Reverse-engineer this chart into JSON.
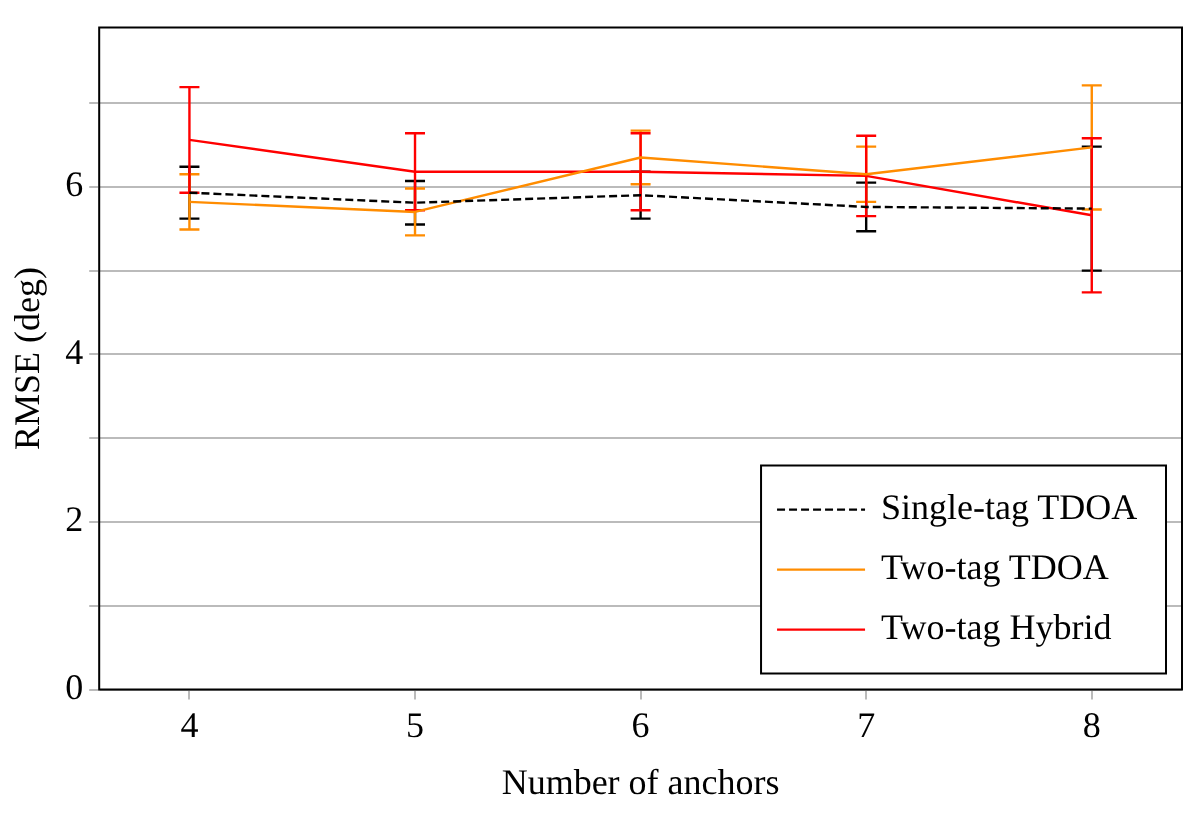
{
  "chart_data": {
    "type": "line",
    "xlabel": "Number of anchors",
    "ylabel": "RMSE (deg)",
    "x": [
      4,
      5,
      6,
      7,
      8
    ],
    "xlim": [
      3.6,
      8.4
    ],
    "xticks": [
      4,
      5,
      6,
      7,
      8
    ],
    "ylim": [
      0,
      7.9
    ],
    "yticks": [
      0,
      {
        "value": 1,
        "label": null
      },
      2,
      {
        "value": 3,
        "label": null
      },
      4,
      {
        "value": 5,
        "label": null
      },
      6,
      {
        "value": 7,
        "label": null
      }
    ],
    "grid": "y",
    "legend": "bottom right",
    "marker": "none",
    "series": [
      {
        "name": "Single-tag TDOA",
        "color": "#000000",
        "line_style": "dashed",
        "values": [
          5.93,
          5.81,
          5.9,
          5.76,
          5.74
        ],
        "errors": [
          0.31,
          0.26,
          0.28,
          0.29,
          0.74
        ]
      },
      {
        "name": "Two-tag TDOA",
        "color": "#ff8c00",
        "line_style": "solid",
        "values": [
          5.82,
          5.7,
          6.35,
          6.15,
          6.47
        ],
        "errors": [
          0.33,
          0.28,
          0.32,
          0.33,
          0.74
        ]
      },
      {
        "name": "Two-tag Hybrid",
        "color": "#ff0000",
        "line_style": "solid",
        "values": [
          6.56,
          6.18,
          6.18,
          6.13,
          5.66
        ],
        "errors": [
          0.63,
          0.46,
          0.46,
          0.48,
          0.92
        ]
      }
    ]
  }
}
